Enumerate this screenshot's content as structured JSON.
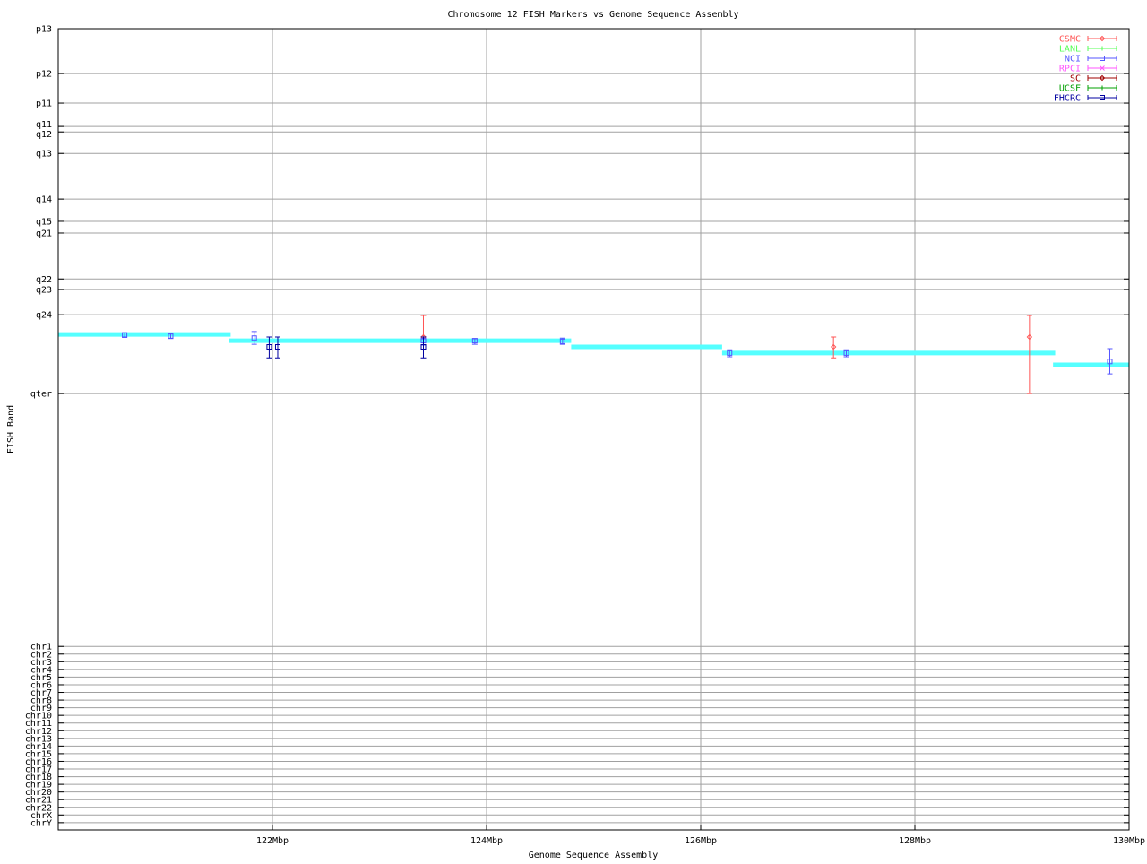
{
  "chart_data": {
    "type": "scatter",
    "title": "Chromosome 12 FISH Markers vs Genome Sequence Assembly",
    "xlabel": "Genome Sequence Assembly",
    "ylabel": "FISH Band",
    "xlim": [
      120,
      130
    ],
    "x_ticks": [
      {
        "value": 122,
        "label": "122Mbp"
      },
      {
        "value": 124,
        "label": "124Mbp"
      },
      {
        "value": 126,
        "label": "126Mbp"
      },
      {
        "value": 128,
        "label": "128Mbp"
      },
      {
        "value": 130,
        "label": "130Mbp"
      }
    ],
    "ylim": [
      0,
      219.6
    ],
    "y_reversed": true,
    "y_ticks": [
      {
        "value": 0,
        "label": "p13"
      },
      {
        "value": 12.3,
        "label": "p12"
      },
      {
        "value": 20.4,
        "label": "p11"
      },
      {
        "value": 26.8,
        "label": "q11"
      },
      {
        "value": 28.3,
        "label": "q12"
      },
      {
        "value": 34.2,
        "label": "q13"
      },
      {
        "value": 46.7,
        "label": "q14"
      },
      {
        "value": 52.8,
        "label": "q15"
      },
      {
        "value": 56.0,
        "label": "q21"
      },
      {
        "value": 68.6,
        "label": "q22"
      },
      {
        "value": 71.5,
        "label": "q23"
      },
      {
        "value": 78.4,
        "label": "q24"
      },
      {
        "value": 100,
        "label": "qter"
      },
      {
        "value": 169.3,
        "label": "chr1"
      },
      {
        "value": 171.4,
        "label": "chr2"
      },
      {
        "value": 173.5,
        "label": "chr3"
      },
      {
        "value": 175.6,
        "label": "chr4"
      },
      {
        "value": 177.7,
        "label": "chr5"
      },
      {
        "value": 179.8,
        "label": "chr6"
      },
      {
        "value": 181.9,
        "label": "chr7"
      },
      {
        "value": 184.0,
        "label": "chr8"
      },
      {
        "value": 186.1,
        "label": "chr9"
      },
      {
        "value": 188.2,
        "label": "chr10"
      },
      {
        "value": 190.3,
        "label": "chr11"
      },
      {
        "value": 192.4,
        "label": "chr12"
      },
      {
        "value": 194.5,
        "label": "chr13"
      },
      {
        "value": 196.6,
        "label": "chr14"
      },
      {
        "value": 198.7,
        "label": "chr15"
      },
      {
        "value": 200.8,
        "label": "chr16"
      },
      {
        "value": 202.9,
        "label": "chr17"
      },
      {
        "value": 205.0,
        "label": "chr18"
      },
      {
        "value": 207.1,
        "label": "chr19"
      },
      {
        "value": 209.2,
        "label": "chr20"
      },
      {
        "value": 211.3,
        "label": "chr21"
      },
      {
        "value": 213.4,
        "label": "chr22"
      },
      {
        "value": 215.5,
        "label": "chrX"
      },
      {
        "value": 217.6,
        "label": "chrY"
      }
    ],
    "grid": true,
    "legend_placement": "top-right",
    "legend": [
      {
        "name": "CSMC",
        "color": "#ff5555",
        "marker": "diamond"
      },
      {
        "name": "LANL",
        "color": "#55ff55",
        "marker": "plus"
      },
      {
        "name": "NCI",
        "color": "#5555ff",
        "marker": "square"
      },
      {
        "name": "RPCI",
        "color": "#ff55ff",
        "marker": "cross"
      },
      {
        "name": "SC",
        "color": "#a00000",
        "marker": "diamond"
      },
      {
        "name": "UCSF",
        "color": "#00a000",
        "marker": "plus"
      },
      {
        "name": "FHCRC",
        "color": "#0000a0",
        "marker": "square"
      }
    ],
    "assembly_segments": {
      "color": "#55ffff",
      "segments": [
        {
          "x0": 120.0,
          "x1": 121.61,
          "y": 83.8
        },
        {
          "x0": 121.59,
          "x1": 124.79,
          "y": 85.5
        },
        {
          "x0": 124.79,
          "x1": 126.2,
          "y": 87.2
        },
        {
          "x0": 126.2,
          "x1": 129.31,
          "y": 88.9
        },
        {
          "x0": 129.29,
          "x1": 130.0,
          "y": 92.1
        }
      ]
    },
    "series": [
      {
        "name": "CSMC",
        "points": [
          {
            "x": 123.41,
            "y": 84.5,
            "ylow": 78.6,
            "yhigh": 86.7
          },
          {
            "x": 127.24,
            "y": 87.2,
            "ylow": 84.5,
            "yhigh": 90.2
          },
          {
            "x": 129.07,
            "y": 84.5,
            "ylow": 78.6,
            "yhigh": 100
          }
        ]
      },
      {
        "name": "NCI",
        "points": [
          {
            "x": 120.62,
            "y": 84.0,
            "ylow": 83.3,
            "yhigh": 84.5
          },
          {
            "x": 121.05,
            "y": 84.3,
            "ylow": 83.5,
            "yhigh": 84.8
          },
          {
            "x": 121.83,
            "y": 84.8,
            "ylow": 83.0,
            "yhigh": 86.5
          },
          {
            "x": 123.41,
            "y": 85.5,
            "ylow": 85.0,
            "yhigh": 86.7
          },
          {
            "x": 123.89,
            "y": 85.5,
            "ylow": 85.0,
            "yhigh": 86.5
          },
          {
            "x": 124.71,
            "y": 85.7,
            "ylow": 84.8,
            "yhigh": 86.5
          },
          {
            "x": 126.27,
            "y": 88.9,
            "ylow": 88.0,
            "yhigh": 89.9
          },
          {
            "x": 127.36,
            "y": 88.9,
            "ylow": 88.0,
            "yhigh": 89.9
          },
          {
            "x": 129.82,
            "y": 91.2,
            "ylow": 87.7,
            "yhigh": 94.6
          }
        ]
      },
      {
        "name": "FHCRC",
        "points": [
          {
            "x": 121.97,
            "y": 87.2,
            "ylow": 84.5,
            "yhigh": 90.2
          },
          {
            "x": 122.05,
            "y": 87.2,
            "ylow": 84.5,
            "yhigh": 90.2
          },
          {
            "x": 123.41,
            "y": 87.2,
            "ylow": 84.5,
            "yhigh": 90.2
          }
        ]
      }
    ]
  }
}
